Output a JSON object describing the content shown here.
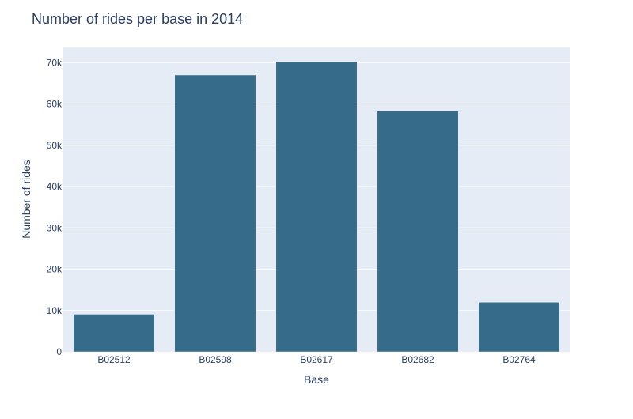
{
  "chart_data": {
    "type": "bar",
    "title": "Number of rides per base in 2014",
    "xlabel": "Base",
    "ylabel": "Number of rides",
    "categories": [
      "B02512",
      "B02598",
      "B02617",
      "B02682",
      "B02764"
    ],
    "values": [
      9100,
      67000,
      70200,
      58300,
      12000
    ],
    "ylim": [
      0,
      73700
    ],
    "yticks": [
      0,
      10000,
      20000,
      30000,
      40000,
      50000,
      60000,
      70000
    ],
    "ytick_labels": [
      "0",
      "10k",
      "20k",
      "30k",
      "40k",
      "50k",
      "60k",
      "70k"
    ],
    "grid": true,
    "legend": "none",
    "bar_color": "#366b8a",
    "plot_bg_color": "#e5ecf6",
    "text_color": "#2a3f5f"
  }
}
